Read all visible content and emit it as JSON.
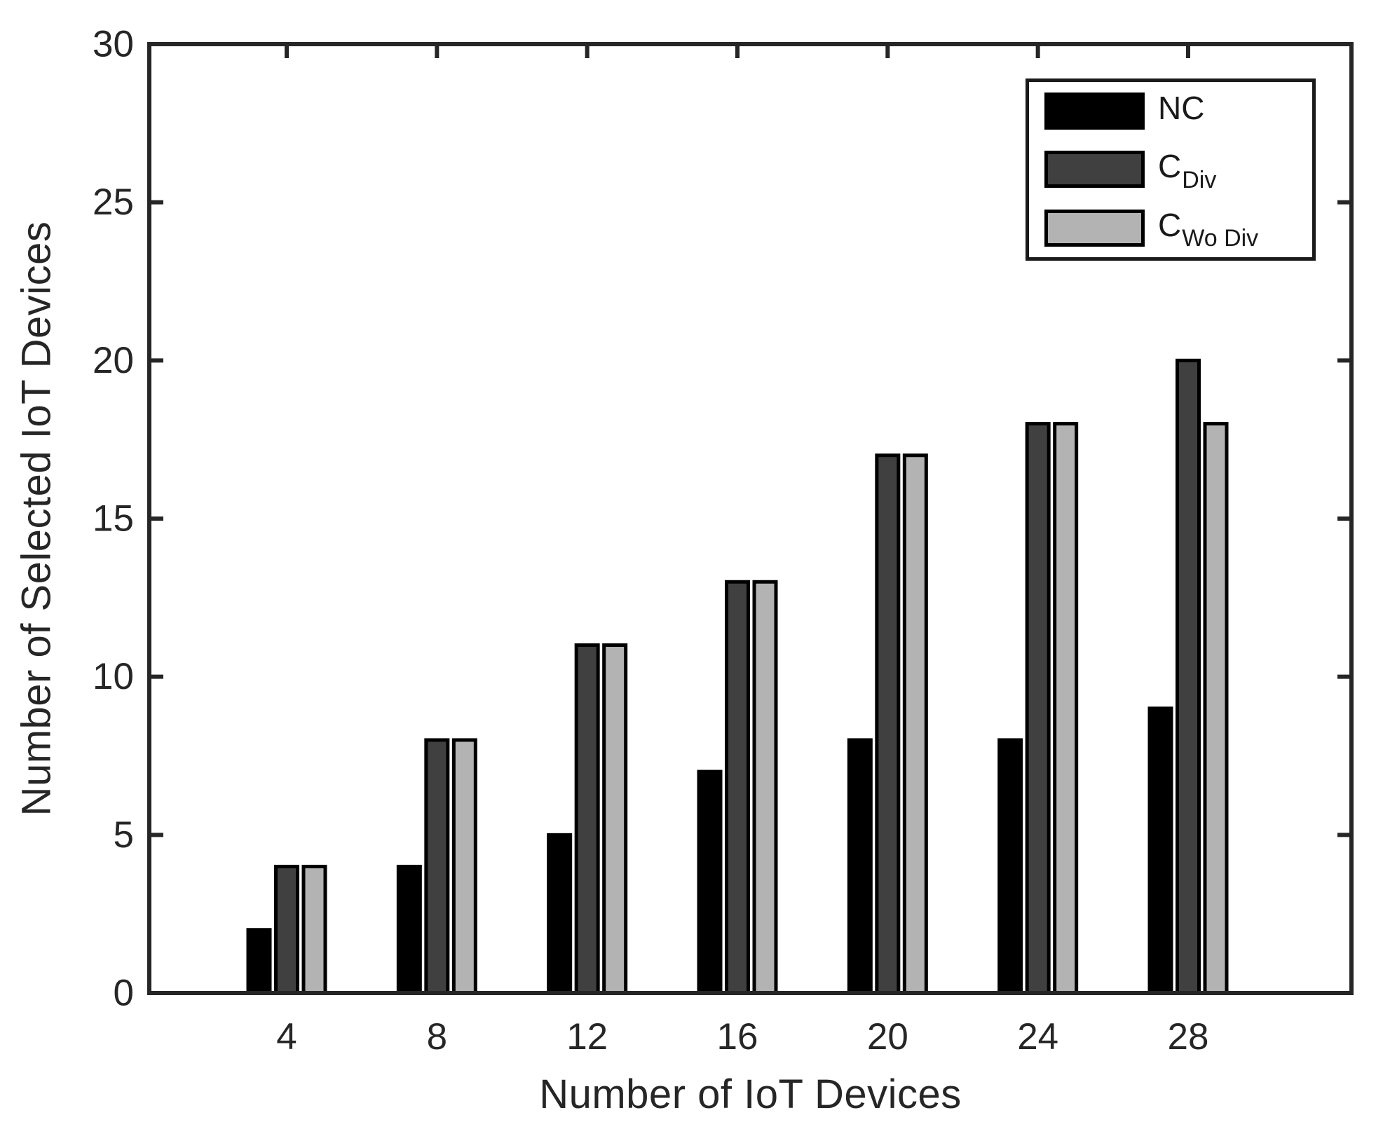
{
  "figure": {
    "background": "#ffffff",
    "axis_color": "#262626"
  },
  "chart_data": {
    "type": "bar",
    "title": "",
    "xlabel": "Number of IoT Devices",
    "ylabel": "Number of Selected IoT Devices",
    "categories": [
      "4",
      "8",
      "12",
      "16",
      "20",
      "24",
      "28"
    ],
    "series": [
      {
        "name": "NC",
        "name_sub": "",
        "color": "#000000",
        "values": [
          2,
          4,
          5,
          7,
          8,
          8,
          9
        ]
      },
      {
        "name": "C",
        "name_sub": "Div",
        "color": "#404040",
        "values": [
          4,
          8,
          11,
          13,
          17,
          18,
          20
        ]
      },
      {
        "name": "C",
        "name_sub": "Wo Div",
        "color": "#b3b3b3",
        "values": [
          4,
          8,
          11,
          13,
          17,
          18,
          18
        ]
      }
    ],
    "bar_edge_color": "#000000",
    "ylim": [
      0,
      30
    ],
    "ytick_step": 5,
    "yticks": [
      "0",
      "5",
      "10",
      "15",
      "20",
      "25",
      "30"
    ],
    "grid": false,
    "legend_position": "top-right"
  }
}
